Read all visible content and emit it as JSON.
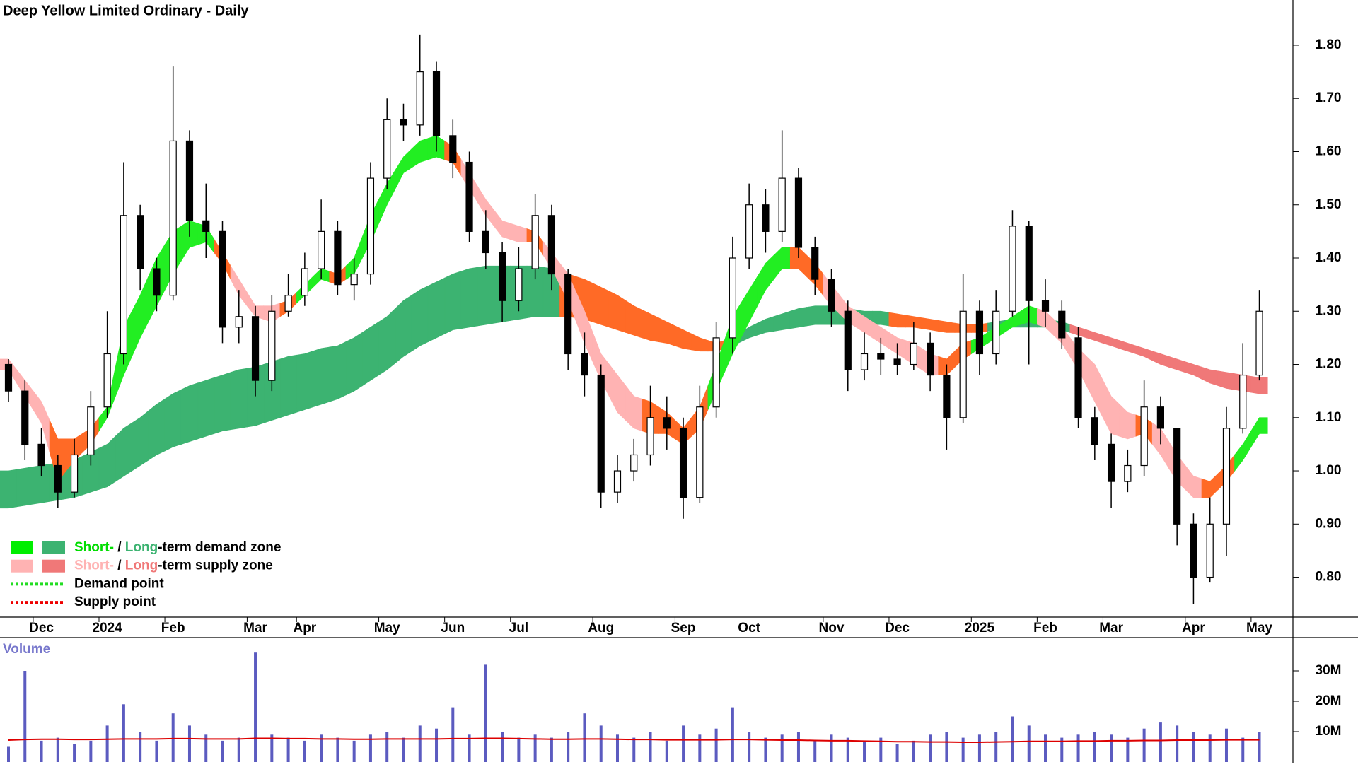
{
  "chart_data": [
    {
      "type": "candlestick",
      "title": "Deep Yellow Limited Ordinary - Daily",
      "categories": [
        null,
        null,
        "Dec",
        null,
        null,
        null,
        "2024",
        null,
        null,
        null,
        "Feb",
        null,
        null,
        null,
        null,
        "Mar",
        null,
        null,
        "Apr",
        null,
        null,
        null,
        null,
        "May",
        null,
        null,
        null,
        "Jun",
        null,
        null,
        null,
        "Jul",
        null,
        null,
        null,
        null,
        "Aug",
        null,
        null,
        null,
        null,
        "Sep",
        null,
        null,
        null,
        "Oct",
        null,
        null,
        null,
        null,
        "Nov",
        null,
        null,
        null,
        "Dec",
        null,
        null,
        null,
        null,
        "2025",
        null,
        null,
        null,
        "Feb",
        null,
        null,
        null,
        "Mar",
        null,
        null,
        null,
        null,
        "Apr",
        null,
        null,
        null,
        "May"
      ],
      "open": [
        1.2,
        1.15,
        1.05,
        1.01,
        0.96,
        1.03,
        1.12,
        1.22,
        1.48,
        1.38,
        1.33,
        1.62,
        1.47,
        1.45,
        1.27,
        1.29,
        1.17,
        1.3,
        1.33,
        1.38,
        1.45,
        1.35,
        1.37,
        1.55,
        1.66,
        1.65,
        1.75,
        1.63,
        1.58,
        1.45,
        1.41,
        1.32,
        1.38,
        1.48,
        1.37,
        1.22,
        1.18,
        0.96,
        1.0,
        1.03,
        1.1,
        1.08,
        0.95,
        1.12,
        1.25,
        1.4,
        1.5,
        1.45,
        1.55,
        1.42,
        1.36,
        1.3,
        1.19,
        1.22,
        1.21,
        1.2,
        1.24,
        1.18,
        1.1,
        1.3,
        1.22,
        1.3,
        1.46,
        1.32,
        1.3,
        1.25,
        1.1,
        1.05,
        0.98,
        1.01,
        1.12,
        1.08,
        0.9,
        0.8,
        0.9,
        1.08,
        1.18
      ],
      "high": [
        1.21,
        1.17,
        1.08,
        1.03,
        1.06,
        1.15,
        1.3,
        1.58,
        1.5,
        1.4,
        1.76,
        1.64,
        1.54,
        1.47,
        1.34,
        1.31,
        1.33,
        1.37,
        1.41,
        1.51,
        1.47,
        1.4,
        1.58,
        1.7,
        1.69,
        1.82,
        1.77,
        1.66,
        1.6,
        1.49,
        1.43,
        1.42,
        1.52,
        1.5,
        1.38,
        1.26,
        1.2,
        1.03,
        1.06,
        1.16,
        1.14,
        1.1,
        1.16,
        1.28,
        1.44,
        1.54,
        1.53,
        1.64,
        1.57,
        1.44,
        1.38,
        1.32,
        1.26,
        1.25,
        1.24,
        1.28,
        1.26,
        1.2,
        1.37,
        1.32,
        1.34,
        1.49,
        1.47,
        1.36,
        1.32,
        1.27,
        1.12,
        1.07,
        1.04,
        1.17,
        1.14,
        1.08,
        0.92,
        0.95,
        1.12,
        1.24,
        1.34
      ],
      "low": [
        1.13,
        1.02,
        0.99,
        0.93,
        0.95,
        1.01,
        1.1,
        1.2,
        1.34,
        1.3,
        1.32,
        1.44,
        1.4,
        1.24,
        1.24,
        1.14,
        1.15,
        1.29,
        1.31,
        1.36,
        1.33,
        1.32,
        1.35,
        1.53,
        1.62,
        1.63,
        1.6,
        1.55,
        1.43,
        1.38,
        1.28,
        1.3,
        1.36,
        1.34,
        1.19,
        1.14,
        0.93,
        0.94,
        0.98,
        1.01,
        1.04,
        0.91,
        0.94,
        1.1,
        1.22,
        1.38,
        1.41,
        1.43,
        1.4,
        1.33,
        1.27,
        1.15,
        1.17,
        1.18,
        1.18,
        1.19,
        1.15,
        1.04,
        1.09,
        1.18,
        1.2,
        1.29,
        1.2,
        1.27,
        1.23,
        1.08,
        1.02,
        0.93,
        0.96,
        0.99,
        1.05,
        0.86,
        0.75,
        0.79,
        0.84,
        1.07,
        1.17
      ],
      "close": [
        1.15,
        1.05,
        1.01,
        0.96,
        1.03,
        1.12,
        1.22,
        1.48,
        1.38,
        1.33,
        1.62,
        1.47,
        1.45,
        1.27,
        1.29,
        1.17,
        1.3,
        1.33,
        1.38,
        1.45,
        1.35,
        1.37,
        1.55,
        1.66,
        1.65,
        1.75,
        1.63,
        1.58,
        1.45,
        1.41,
        1.32,
        1.38,
        1.48,
        1.37,
        1.22,
        1.18,
        0.96,
        1.0,
        1.03,
        1.1,
        1.08,
        0.95,
        1.12,
        1.25,
        1.4,
        1.5,
        1.45,
        1.55,
        1.42,
        1.36,
        1.3,
        1.19,
        1.22,
        1.21,
        1.2,
        1.24,
        1.18,
        1.1,
        1.3,
        1.22,
        1.3,
        1.46,
        1.32,
        1.3,
        1.25,
        1.1,
        1.05,
        0.98,
        1.01,
        1.12,
        1.08,
        0.9,
        0.8,
        0.9,
        1.08,
        1.18,
        1.3
      ],
      "long_term_zone": {
        "lower": [
          0.93,
          0.935,
          0.94,
          0.945,
          0.95,
          0.96,
          0.97,
          0.99,
          1.01,
          1.03,
          1.045,
          1.055,
          1.065,
          1.075,
          1.08,
          1.085,
          1.095,
          1.105,
          1.115,
          1.125,
          1.135,
          1.15,
          1.17,
          1.19,
          1.215,
          1.235,
          1.25,
          1.265,
          1.27,
          1.275,
          1.28,
          1.285,
          1.29,
          1.29,
          1.29,
          1.285,
          1.275,
          1.265,
          1.255,
          1.245,
          1.24,
          1.23,
          1.225,
          1.225,
          1.235,
          1.25,
          1.26,
          1.265,
          1.27,
          1.275,
          1.275,
          1.275,
          1.275,
          1.275,
          1.27,
          1.27,
          1.265,
          1.26,
          1.26,
          1.26,
          1.265,
          1.27,
          1.27,
          1.27,
          1.265,
          1.255,
          1.245,
          1.235,
          1.225,
          1.215,
          1.2,
          1.19,
          1.18,
          1.165,
          1.155,
          1.15,
          1.145
        ],
        "upper": [
          1.0,
          1.005,
          1.01,
          1.015,
          1.02,
          1.035,
          1.05,
          1.08,
          1.1,
          1.125,
          1.145,
          1.16,
          1.17,
          1.18,
          1.19,
          1.195,
          1.205,
          1.215,
          1.22,
          1.23,
          1.235,
          1.25,
          1.27,
          1.29,
          1.32,
          1.34,
          1.355,
          1.37,
          1.38,
          1.385,
          1.385,
          1.385,
          1.385,
          1.38,
          1.37,
          1.36,
          1.345,
          1.33,
          1.31,
          1.295,
          1.28,
          1.265,
          1.25,
          1.24,
          1.25,
          1.27,
          1.285,
          1.295,
          1.305,
          1.31,
          1.31,
          1.305,
          1.3,
          1.3,
          1.295,
          1.29,
          1.285,
          1.28,
          1.275,
          1.275,
          1.28,
          1.285,
          1.285,
          1.285,
          1.28,
          1.27,
          1.26,
          1.25,
          1.24,
          1.23,
          1.22,
          1.21,
          1.2,
          1.19,
          1.185,
          1.18,
          1.175
        ],
        "colors": [
          "#3cb371",
          "#3cb371",
          "#3cb371",
          "#3cb371",
          "#3cb371",
          "#3cb371",
          "#3cb371",
          "#3cb371",
          "#3cb371",
          "#3cb371",
          "#3cb371",
          "#3cb371",
          "#3cb371",
          "#3cb371",
          "#3cb371",
          "#3cb371",
          "#3cb371",
          "#3cb371",
          "#3cb371",
          "#3cb371",
          "#3cb371",
          "#3cb371",
          "#3cb371",
          "#3cb371",
          "#3cb371",
          "#3cb371",
          "#3cb371",
          "#3cb371",
          "#3cb371",
          "#3cb371",
          "#3cb371",
          "#3cb371",
          "#3cb371",
          "#3cb371",
          "#ff6a26",
          "#ff6a26",
          "#ff6a26",
          "#ff6a26",
          "#ff6a26",
          "#ff6a26",
          "#ff6a26",
          "#ff6a26",
          "#ff6a26",
          "#ff6a26",
          "#3cb371",
          "#3cb371",
          "#3cb371",
          "#3cb371",
          "#3cb371",
          "#3cb371",
          "#3cb371",
          "#3cb371",
          "#3cb371",
          "#3cb371",
          "#ff6a26",
          "#ff6a26",
          "#ff6a26",
          "#ff6a26",
          "#ff6a26",
          "#ff6a26",
          "#3cb371",
          "#3cb371",
          "#3cb371",
          "#3cb371",
          "#3cb371",
          "#f07878",
          "#f07878",
          "#f07878",
          "#f07878",
          "#f07878",
          "#f07878",
          "#f07878",
          "#f07878",
          "#f07878",
          "#f07878",
          "#f07878",
          "#f07878"
        ]
      },
      "short_term_zone": {
        "lower": [
          1.19,
          1.14,
          1.09,
          0.98,
          1.02,
          1.05,
          1.1,
          1.18,
          1.25,
          1.31,
          1.37,
          1.42,
          1.43,
          1.39,
          1.33,
          1.29,
          1.28,
          1.3,
          1.33,
          1.36,
          1.35,
          1.37,
          1.43,
          1.5,
          1.56,
          1.58,
          1.59,
          1.58,
          1.53,
          1.48,
          1.44,
          1.43,
          1.43,
          1.38,
          1.32,
          1.24,
          1.17,
          1.11,
          1.08,
          1.07,
          1.07,
          1.05,
          1.08,
          1.15,
          1.22,
          1.28,
          1.34,
          1.38,
          1.38,
          1.35,
          1.31,
          1.28,
          1.26,
          1.24,
          1.22,
          1.2,
          1.18,
          1.18,
          1.21,
          1.23,
          1.25,
          1.27,
          1.28,
          1.27,
          1.24,
          1.19,
          1.13,
          1.07,
          1.06,
          1.07,
          1.03,
          0.98,
          0.95,
          0.95,
          0.98,
          1.02,
          1.07
        ],
        "upper": [
          1.21,
          1.17,
          1.13,
          1.06,
          1.06,
          1.08,
          1.12,
          1.27,
          1.33,
          1.4,
          1.45,
          1.47,
          1.46,
          1.41,
          1.36,
          1.31,
          1.31,
          1.32,
          1.35,
          1.38,
          1.37,
          1.4,
          1.48,
          1.54,
          1.59,
          1.62,
          1.63,
          1.61,
          1.56,
          1.51,
          1.47,
          1.46,
          1.45,
          1.41,
          1.37,
          1.3,
          1.22,
          1.18,
          1.14,
          1.13,
          1.11,
          1.08,
          1.12,
          1.2,
          1.29,
          1.34,
          1.39,
          1.42,
          1.42,
          1.39,
          1.35,
          1.31,
          1.29,
          1.27,
          1.25,
          1.24,
          1.22,
          1.21,
          1.24,
          1.25,
          1.27,
          1.29,
          1.31,
          1.3,
          1.27,
          1.23,
          1.2,
          1.14,
          1.11,
          1.1,
          1.08,
          1.03,
          0.99,
          0.98,
          1.01,
          1.05,
          1.1
        ],
        "colors": [
          "#ffb3b3",
          "#ffb3b3",
          "#ffb3b3",
          "#ff6a26",
          "#ff6a26",
          "#ff6a26",
          "#22ee22",
          "#22ee22",
          "#22ee22",
          "#22ee22",
          "#22ee22",
          "#22ee22",
          "#22ee22",
          "#ff6a26",
          "#ffb3b3",
          "#ffb3b3",
          "#ffb3b3",
          "#ff6a26",
          "#22ee22",
          "#22ee22",
          "#ff6a26",
          "#22ee22",
          "#22ee22",
          "#22ee22",
          "#22ee22",
          "#22ee22",
          "#22ee22",
          "#ff6a26",
          "#ffb3b3",
          "#ffb3b3",
          "#ffb3b3",
          "#ffb3b3",
          "#ff6a26",
          "#ffb3b3",
          "#ffb3b3",
          "#ffb3b3",
          "#ffb3b3",
          "#ffb3b3",
          "#ffb3b3",
          "#ff6a26",
          "#ff6a26",
          "#ff6a26",
          "#ff6a26",
          "#22ee22",
          "#22ee22",
          "#22ee22",
          "#22ee22",
          "#22ee22",
          "#ff6a26",
          "#ff6a26",
          "#ffb3b3",
          "#ffb3b3",
          "#ffb3b3",
          "#ffb3b3",
          "#ffb3b3",
          "#ffb3b3",
          "#ffb3b3",
          "#ff6a26",
          "#ff6a26",
          "#22ee22",
          "#22ee22",
          "#22ee22",
          "#22ee22",
          "#ffb3b3",
          "#ffb3b3",
          "#ffb3b3",
          "#ffb3b3",
          "#ffb3b3",
          "#ffb3b3",
          "#ff6a26",
          "#ffb3b3",
          "#ffb3b3",
          "#ffb3b3",
          "#ff6a26",
          "#ff6a26",
          "#22ee22",
          "#22ee22"
        ]
      },
      "ylim": [
        0.725,
        1.885
      ],
      "yticks": [
        {
          "value": 0.8,
          "label": "0.80"
        },
        {
          "value": 0.9,
          "label": "0.90"
        },
        {
          "value": 1.0,
          "label": "1.00"
        },
        {
          "value": 1.1,
          "label": "1.10"
        },
        {
          "value": 1.2,
          "label": "1.20"
        },
        {
          "value": 1.3,
          "label": "1.30"
        },
        {
          "value": 1.4,
          "label": "1.40"
        },
        {
          "value": 1.5,
          "label": "1.50"
        },
        {
          "value": 1.6,
          "label": "1.60"
        },
        {
          "value": 1.7,
          "label": "1.70"
        },
        {
          "value": 1.8,
          "label": "1.80"
        }
      ],
      "legend": [
        {
          "swatches": [
            "#00ee00",
            "#3cb371"
          ],
          "parts": [
            {
              "text": "Short-",
              "color": "#00dd00"
            },
            {
              "text": " / ",
              "color": "#000000"
            },
            {
              "text": "Long",
              "color": "#3cb371"
            },
            {
              "text": "-term demand zone",
              "color": "#000000"
            }
          ]
        },
        {
          "swatches": [
            "#ffb3b3",
            "#f07878"
          ],
          "parts": [
            {
              "text": "Short-",
              "color": "#ffb3b3"
            },
            {
              "text": " / ",
              "color": "#000000"
            },
            {
              "text": "Long",
              "color": "#f07878"
            },
            {
              "text": "-term supply zone",
              "color": "#000000"
            }
          ]
        },
        {
          "line_color": "#22dd22",
          "parts": [
            {
              "text": "Demand point",
              "color": "#000000"
            }
          ]
        },
        {
          "line_color": "#ee0000",
          "parts": [
            {
              "text": "Supply point",
              "color": "#000000"
            }
          ]
        }
      ]
    },
    {
      "type": "bar",
      "title": "Volume",
      "color": "#5b5bc0",
      "values": [
        5,
        30,
        7,
        8,
        6,
        7,
        12,
        19,
        10,
        7,
        16,
        12,
        9,
        7,
        8,
        36,
        9,
        8,
        7,
        9,
        8,
        7,
        9,
        10,
        8,
        12,
        11,
        18,
        9,
        32,
        10,
        8,
        9,
        8,
        10,
        16,
        12,
        9,
        8,
        10,
        7,
        12,
        9,
        11,
        18,
        10,
        8,
        9,
        10,
        7,
        9,
        8,
        7,
        8,
        6,
        7,
        9,
        10,
        8,
        9,
        10,
        15,
        12,
        9,
        8,
        9,
        10,
        9,
        8,
        11,
        13,
        12,
        10,
        9,
        11,
        8,
        10
      ],
      "average": {
        "color": "#dd0000",
        "values": [
          7.2,
          7.4,
          7.5,
          7.5,
          7.4,
          7.4,
          7.5,
          7.6,
          7.6,
          7.6,
          7.7,
          7.7,
          7.6,
          7.6,
          7.6,
          7.8,
          7.8,
          7.7,
          7.7,
          7.6,
          7.6,
          7.5,
          7.5,
          7.6,
          7.6,
          7.6,
          7.6,
          7.7,
          7.7,
          7.8,
          7.8,
          7.7,
          7.6,
          7.5,
          7.5,
          7.6,
          7.6,
          7.5,
          7.4,
          7.4,
          7.3,
          7.3,
          7.3,
          7.3,
          7.4,
          7.4,
          7.3,
          7.2,
          7.2,
          7.1,
          7.0,
          7.0,
          6.9,
          6.8,
          6.7,
          6.7,
          6.6,
          6.6,
          6.5,
          6.5,
          6.6,
          6.7,
          6.8,
          6.8,
          6.8,
          6.9,
          6.9,
          7.0,
          7.0,
          7.1,
          7.1,
          7.2,
          7.2,
          7.2,
          7.3,
          7.3,
          7.3
        ]
      },
      "ylim": [
        0,
        40
      ],
      "yticks": [
        {
          "value": 10,
          "label": "10M"
        },
        {
          "value": 20,
          "label": "20M"
        },
        {
          "value": 30,
          "label": "30M"
        }
      ]
    }
  ]
}
